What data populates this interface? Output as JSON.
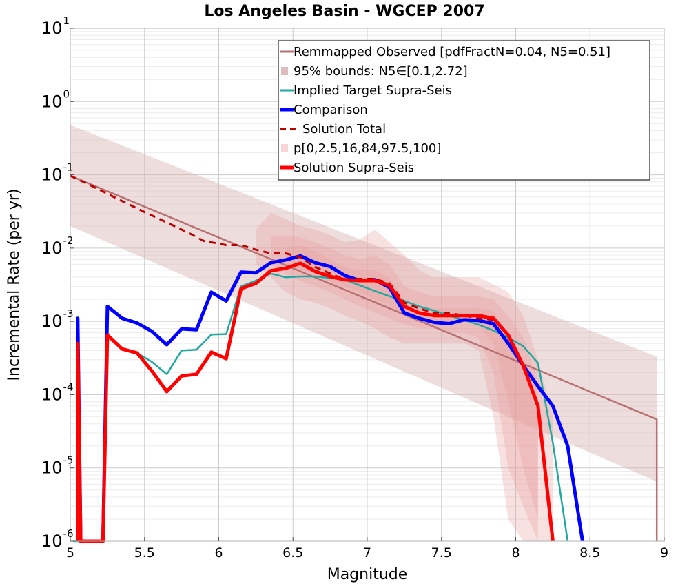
{
  "chart_data": {
    "type": "line",
    "title": "Los Angeles Basin - WGCEP 2007",
    "xlabel": "Magnitude",
    "ylabel": "Incremental Rate (per yr)",
    "xlim": [
      5,
      9
    ],
    "ylim": [
      1e-06,
      10
    ],
    "yscale": "log",
    "grid": true,
    "legend_position": "top-right",
    "x_ticks": [
      "5",
      "5.5",
      "6",
      "6.5",
      "7",
      "7.5",
      "8",
      "8.5",
      "9"
    ],
    "y_ticks": [
      {
        "base": "10",
        "exp": "-6"
      },
      {
        "base": "10",
        "exp": "-5"
      },
      {
        "base": "10",
        "exp": "-4"
      },
      {
        "base": "10",
        "exp": "-3"
      },
      {
        "base": "10",
        "exp": "-2"
      },
      {
        "base": "10",
        "exp": "-1"
      },
      {
        "base": "10",
        "exp": "0"
      },
      {
        "base": "10",
        "exp": "1"
      }
    ],
    "bands": [
      {
        "name": "95% bounds: N5∈[0.1,2.72]",
        "color": "#d9b3b3",
        "opacity": 0.45,
        "x": [
          5.0,
          8.95
        ],
        "lower": [
          0.02,
          6.5e-06
        ],
        "upper": [
          0.48,
          0.00033
        ]
      },
      {
        "name": "p[0,2.5,16,84,97.5,100]",
        "color": "#e89a9a",
        "opacity": 0.3,
        "x": [
          6.25,
          6.35,
          6.45,
          6.55,
          6.65,
          6.75,
          6.85,
          6.95,
          7.05,
          7.15,
          7.25,
          7.35,
          7.45,
          7.55,
          7.65,
          7.75,
          7.85,
          7.95,
          8.05,
          8.15,
          8.25
        ],
        "lower": [
          0.006,
          0.004,
          0.0025,
          0.002,
          0.0018,
          0.0015,
          0.0012,
          0.001,
          0.0008,
          0.0006,
          0.0005,
          0.0005,
          0.0005,
          0.0005,
          0.0005,
          0.0004,
          5e-05,
          2e-06,
          1e-06,
          1e-06,
          1e-06
        ],
        "upper": [
          0.018,
          0.03,
          0.025,
          0.02,
          0.018,
          0.015,
          0.012,
          0.013,
          0.018,
          0.012,
          0.008,
          0.005,
          0.004,
          0.004,
          0.004,
          0.004,
          0.0032,
          0.0025,
          0.0012,
          0.0003,
          5e-05
        ]
      },
      {
        "name": "",
        "color": "#e89a9a",
        "opacity": 0.3,
        "x": [
          6.35,
          6.45,
          6.55,
          6.65,
          6.75,
          6.85,
          6.95,
          7.05,
          7.15,
          7.25,
          7.35,
          7.45,
          7.55,
          7.65,
          7.75,
          7.85,
          7.95,
          8.05,
          8.15
        ],
        "lower": [
          0.006,
          0.0045,
          0.0035,
          0.003,
          0.0025,
          0.002,
          0.0016,
          0.0013,
          0.0011,
          0.0009,
          0.0008,
          0.0008,
          0.0007,
          0.0007,
          0.0006,
          0.0002,
          1e-05,
          3e-06,
          1e-06
        ],
        "upper": [
          0.014,
          0.015,
          0.014,
          0.012,
          0.01,
          0.008,
          0.007,
          0.008,
          0.006,
          0.003,
          0.0025,
          0.0022,
          0.0022,
          0.0022,
          0.0022,
          0.002,
          0.0012,
          0.0006,
          0.00015
        ]
      },
      {
        "name": "",
        "color": "#e89a9a",
        "opacity": 0.3,
        "x": [
          6.45,
          6.55,
          6.65,
          6.75,
          6.85,
          6.95,
          7.05,
          7.15,
          7.25,
          7.35,
          7.45,
          7.55,
          7.65,
          7.75,
          7.85,
          7.95,
          8.05,
          8.15
        ],
        "lower": [
          0.006,
          0.005,
          0.0045,
          0.0035,
          0.003,
          0.0025,
          0.002,
          0.0017,
          0.0012,
          0.001,
          0.001,
          0.001,
          0.001,
          0.0009,
          0.0005,
          8e-05,
          1e-05,
          2e-06
        ],
        "upper": [
          0.01,
          0.011,
          0.009,
          0.007,
          0.0055,
          0.005,
          0.005,
          0.004,
          0.002,
          0.0016,
          0.0015,
          0.0015,
          0.0015,
          0.0015,
          0.0014,
          0.0006,
          0.00025,
          5e-05
        ]
      }
    ],
    "series": [
      {
        "name": "Remmapped Observed [pdfFractN=0.04, N5=0.51]",
        "color": "#b87070",
        "width": 2.5,
        "dash": "",
        "x": [
          5.0,
          8.95,
          8.95
        ],
        "y": [
          0.097,
          4.6e-05,
          1e-06
        ]
      },
      {
        "name": "Implied Target Supra-Seis",
        "color": "#20a8a0",
        "width": 2.5,
        "dash": "",
        "x": [
          5.02,
          5.05,
          5.08,
          5.22,
          5.25,
          5.35,
          5.45,
          5.55,
          5.65,
          5.75,
          5.85,
          5.95,
          6.05,
          6.15,
          6.25,
          6.35,
          6.45,
          6.55,
          6.65,
          6.75,
          6.85,
          6.95,
          7.05,
          7.15,
          7.25,
          7.35,
          7.45,
          7.55,
          7.65,
          7.75,
          7.85,
          7.95,
          8.05,
          8.15,
          8.25,
          8.35
        ],
        "y": [
          1e-06,
          1e-06,
          1e-06,
          1e-06,
          0.00065,
          0.00042,
          0.00037,
          0.00028,
          0.00019,
          0.0004,
          0.00041,
          0.00066,
          0.00067,
          0.003,
          0.0036,
          0.0045,
          0.004,
          0.0041,
          0.0041,
          0.0039,
          0.0037,
          0.0031,
          0.0026,
          0.0022,
          0.0019,
          0.0016,
          0.0014,
          0.0012,
          0.00105,
          0.0009,
          0.00075,
          0.0006,
          0.00046,
          0.00027,
          2.2e-05,
          1e-06
        ]
      },
      {
        "name": "Comparison",
        "color": "#0000ff",
        "width": 5,
        "dash": "",
        "x": [
          5.05,
          5.05,
          5.07,
          5.22,
          5.25,
          5.35,
          5.45,
          5.55,
          5.65,
          5.75,
          5.85,
          5.95,
          6.05,
          6.15,
          6.25,
          6.35,
          6.45,
          6.55,
          6.65,
          6.75,
          6.85,
          6.95,
          7.05,
          7.15,
          7.25,
          7.35,
          7.45,
          7.55,
          7.65,
          7.75,
          7.85,
          7.95,
          8.05,
          8.15,
          8.25,
          8.35,
          8.45
        ],
        "y": [
          1e-06,
          0.0011,
          1e-06,
          1e-06,
          0.0016,
          0.0011,
          0.00095,
          0.00073,
          0.00048,
          0.00079,
          0.00077,
          0.0025,
          0.0019,
          0.0047,
          0.0046,
          0.0063,
          0.0069,
          0.0078,
          0.0063,
          0.0056,
          0.0042,
          0.0036,
          0.0037,
          0.0029,
          0.0013,
          0.0011,
          0.00097,
          0.00093,
          0.00105,
          0.00103,
          0.00093,
          0.0005,
          0.00025,
          0.00013,
          7e-05,
          2e-05,
          1e-06
        ]
      },
      {
        "name": "Solution Total",
        "color": "#c00000",
        "width": 3,
        "dash": "9 7",
        "x": [
          5.0,
          5.1,
          5.2,
          5.3,
          5.4,
          5.5,
          5.6,
          5.7,
          5.8,
          5.9,
          6.0,
          6.05,
          6.15,
          6.25,
          6.35,
          6.45,
          6.55,
          6.65,
          6.75,
          6.85,
          6.95,
          7.05,
          7.15,
          7.25,
          7.35,
          7.45,
          7.55,
          7.65,
          7.75,
          7.85
        ],
        "y": [
          0.097,
          0.078,
          0.062,
          0.049,
          0.039,
          0.031,
          0.025,
          0.02,
          0.016,
          0.0125,
          0.0115,
          0.011,
          0.011,
          0.0095,
          0.0085,
          0.0085,
          0.0075,
          0.0055,
          0.0045,
          0.0037,
          0.0038,
          0.0038,
          0.0033,
          0.0018,
          0.0015,
          0.0013,
          0.0013,
          0.0012,
          0.0011,
          0.00105
        ]
      },
      {
        "name": "Solution Supra-Seis",
        "color": "#ff0000",
        "width": 5,
        "dash": "",
        "x": [
          5.05,
          5.05,
          5.07,
          5.22,
          5.25,
          5.35,
          5.45,
          5.55,
          5.65,
          5.75,
          5.85,
          5.95,
          6.05,
          6.15,
          6.25,
          6.35,
          6.45,
          6.55,
          6.65,
          6.75,
          6.85,
          6.95,
          7.05,
          7.15,
          7.25,
          7.35,
          7.45,
          7.55,
          7.65,
          7.75,
          7.85,
          7.95,
          8.05,
          8.15,
          8.25
        ],
        "y": [
          1e-06,
          0.0005,
          1e-06,
          1e-06,
          0.00065,
          0.00042,
          0.00037,
          0.00021,
          0.00011,
          0.00018,
          0.00019,
          0.00038,
          0.00031,
          0.0028,
          0.0033,
          0.0049,
          0.0053,
          0.0062,
          0.0048,
          0.0041,
          0.0037,
          0.0036,
          0.0036,
          0.0031,
          0.0016,
          0.0013,
          0.0012,
          0.0012,
          0.0012,
          0.0012,
          0.0011,
          0.00065,
          0.00025,
          7e-05,
          1e-06
        ]
      }
    ],
    "legend": [
      {
        "label": "Remmapped Observed [pdfFractN=0.04, N5=0.51]",
        "kind": "line",
        "color": "#b87070",
        "dash": ""
      },
      {
        "label": "95% bounds: N5∈[0.1,2.72]",
        "kind": "patch",
        "color": "#dcbcbc",
        "dash": ""
      },
      {
        "label": "Implied Target Supra-Seis",
        "kind": "line",
        "color": "#20a8a0",
        "dash": ""
      },
      {
        "label": "Comparison",
        "kind": "thick",
        "color": "#0000ff",
        "dash": ""
      },
      {
        "label": "Solution Total",
        "kind": "line",
        "color": "#c00000",
        "dash": "9 7"
      },
      {
        "label": "p[0,2.5,16,84,97.5,100]",
        "kind": "patch",
        "color": "#f5d5d5",
        "dash": ""
      },
      {
        "label": "Solution Supra-Seis",
        "kind": "thick",
        "color": "#ff0000",
        "dash": ""
      }
    ]
  }
}
